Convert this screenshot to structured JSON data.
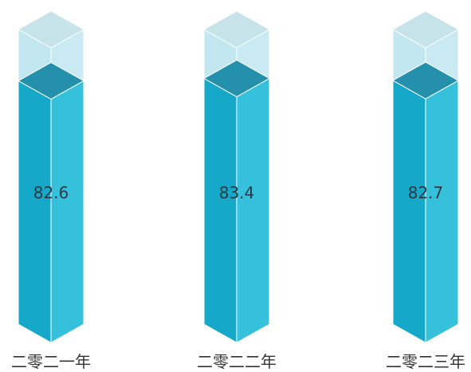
{
  "chart_data": {
    "type": "bar",
    "categories": [
      "二零二一年",
      "二零二二年",
      "二零二三年"
    ],
    "values": [
      82.6,
      83.4,
      82.7
    ],
    "ylim": [
      0,
      100
    ],
    "grid": false,
    "legend": "none",
    "value_labels": [
      "82.6",
      "83.4",
      "82.7"
    ]
  },
  "colors": {
    "front": "#16a8c9",
    "side": "#35c1dc",
    "top": "#2590ab",
    "ghost_front": "#c2e7f1",
    "ghost_side": "#c9eaf2",
    "ghost_top": "#c6e3ea",
    "edge": "#ffffff"
  }
}
